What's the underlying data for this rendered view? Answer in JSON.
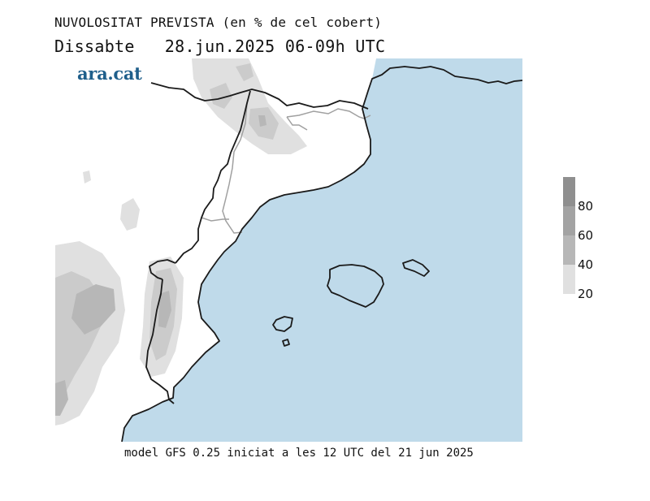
{
  "header": {
    "title": "NUVOLOSITAT PREVISTA (en % de cel cobert)",
    "day": "Dissabte",
    "date": "28.jun.2025",
    "time_range": "06-09h UTC"
  },
  "brand": {
    "logo_text": "ara.cat"
  },
  "footer": {
    "model_info": "model GFS 0.25 iniciat a les 12 UTC del 21 jun 2025"
  },
  "legend": {
    "levels": [
      {
        "label": "80",
        "color": "#a3a3a3"
      },
      {
        "label": "60",
        "color": "#b7b7b7"
      },
      {
        "label": "40",
        "color": "#cbcbcb"
      },
      {
        "label": "20",
        "color": "#e0e0e0"
      }
    ],
    "top_color": "#8f8f8f"
  },
  "colors": {
    "sea": "#bfdaea",
    "land": "#ffffff",
    "coast": "#1a1a1a",
    "borders": "#a0a0a0"
  }
}
